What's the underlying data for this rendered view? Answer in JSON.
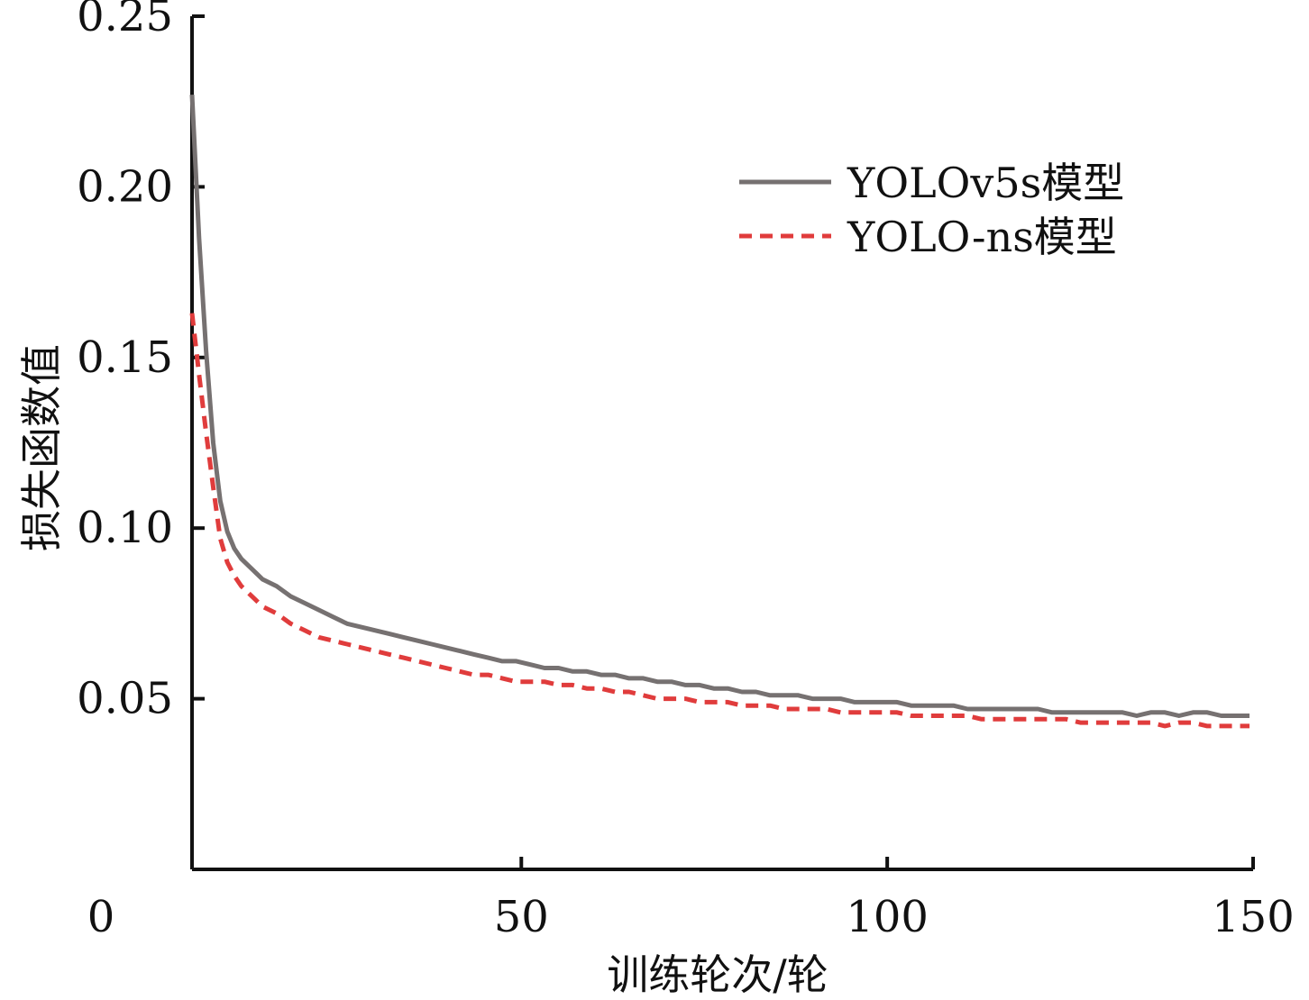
{
  "chart_data": {
    "type": "line",
    "title": "",
    "xlabel": "训练轮次/轮",
    "ylabel": "损失函数值",
    "xlim": [
      0,
      150
    ],
    "ylim": [
      0,
      0.25
    ],
    "x_ticks": [
      "0",
      "50",
      "100",
      "150"
    ],
    "y_ticks": [
      "0.05",
      "0.10",
      "0.15",
      "0.20",
      "0.25"
    ],
    "grid": false,
    "legend_position": "top-right",
    "series": [
      {
        "name": "YOLOv5s模型",
        "color": "#767171",
        "style": "solid",
        "x": [
          0,
          1,
          2,
          3,
          4,
          5,
          6,
          7,
          8,
          9,
          10,
          12,
          14,
          16,
          18,
          20,
          22,
          24,
          26,
          28,
          30,
          32,
          34,
          36,
          38,
          40,
          42,
          44,
          46,
          48,
          50,
          52,
          54,
          56,
          58,
          60,
          62,
          64,
          66,
          68,
          70,
          72,
          74,
          76,
          78,
          80,
          82,
          84,
          86,
          88,
          90,
          92,
          94,
          96,
          98,
          100,
          102,
          104,
          106,
          108,
          110,
          112,
          114,
          116,
          118,
          120,
          122,
          124,
          126,
          128,
          130,
          132,
          134,
          136,
          138,
          140,
          142,
          144,
          146,
          148,
          150
        ],
        "y": [
          0.227,
          0.185,
          0.152,
          0.125,
          0.108,
          0.099,
          0.094,
          0.091,
          0.089,
          0.087,
          0.085,
          0.083,
          0.08,
          0.078,
          0.076,
          0.074,
          0.072,
          0.071,
          0.07,
          0.069,
          0.068,
          0.067,
          0.066,
          0.065,
          0.064,
          0.063,
          0.062,
          0.061,
          0.061,
          0.06,
          0.059,
          0.059,
          0.058,
          0.058,
          0.057,
          0.057,
          0.056,
          0.056,
          0.055,
          0.055,
          0.054,
          0.054,
          0.053,
          0.053,
          0.052,
          0.052,
          0.051,
          0.051,
          0.051,
          0.05,
          0.05,
          0.05,
          0.049,
          0.049,
          0.049,
          0.049,
          0.048,
          0.048,
          0.048,
          0.048,
          0.047,
          0.047,
          0.047,
          0.047,
          0.047,
          0.047,
          0.046,
          0.046,
          0.046,
          0.046,
          0.046,
          0.046,
          0.045,
          0.046,
          0.046,
          0.045,
          0.046,
          0.046,
          0.045,
          0.045,
          0.045
        ]
      },
      {
        "name": "YOLO-ns模型",
        "color": "#e03c3c",
        "style": "dashed",
        "x": [
          0,
          1,
          2,
          3,
          4,
          5,
          6,
          7,
          8,
          9,
          10,
          12,
          14,
          16,
          18,
          20,
          22,
          24,
          26,
          28,
          30,
          32,
          34,
          36,
          38,
          40,
          42,
          44,
          46,
          48,
          50,
          52,
          54,
          56,
          58,
          60,
          62,
          64,
          66,
          68,
          70,
          72,
          74,
          76,
          78,
          80,
          82,
          84,
          86,
          88,
          90,
          92,
          94,
          96,
          98,
          100,
          102,
          104,
          106,
          108,
          110,
          112,
          114,
          116,
          118,
          120,
          122,
          124,
          126,
          128,
          130,
          132,
          134,
          136,
          138,
          140,
          142,
          144,
          146,
          148,
          150
        ],
        "y": [
          0.163,
          0.145,
          0.128,
          0.112,
          0.097,
          0.09,
          0.086,
          0.083,
          0.081,
          0.079,
          0.077,
          0.075,
          0.072,
          0.07,
          0.068,
          0.067,
          0.066,
          0.065,
          0.064,
          0.063,
          0.062,
          0.061,
          0.06,
          0.059,
          0.058,
          0.057,
          0.057,
          0.056,
          0.055,
          0.055,
          0.055,
          0.054,
          0.054,
          0.053,
          0.053,
          0.052,
          0.052,
          0.051,
          0.05,
          0.05,
          0.05,
          0.049,
          0.049,
          0.049,
          0.048,
          0.048,
          0.048,
          0.047,
          0.047,
          0.047,
          0.047,
          0.046,
          0.046,
          0.046,
          0.046,
          0.046,
          0.045,
          0.045,
          0.045,
          0.045,
          0.045,
          0.044,
          0.044,
          0.044,
          0.044,
          0.044,
          0.044,
          0.044,
          0.043,
          0.043,
          0.043,
          0.043,
          0.043,
          0.043,
          0.042,
          0.043,
          0.043,
          0.042,
          0.042,
          0.042,
          0.042
        ]
      }
    ]
  }
}
